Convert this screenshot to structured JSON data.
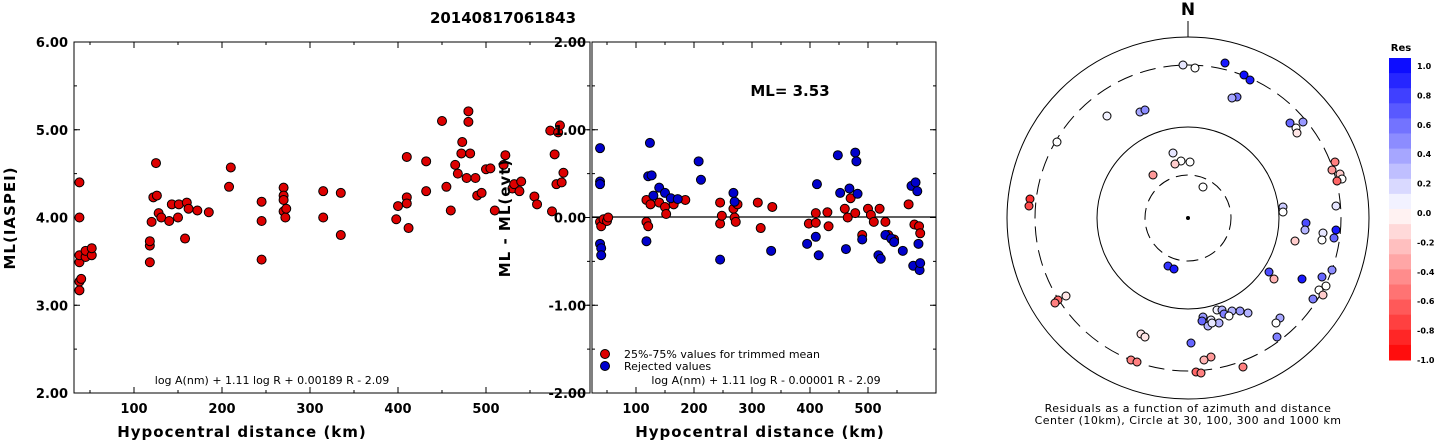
{
  "title": "20140817061843",
  "chart_data": [
    {
      "type": "scatter",
      "id": "left",
      "xlabel": "Hypocentral distance (km)",
      "ylabel": "ML(IASPEI)",
      "xlim": [
        0,
        590
      ],
      "ylim": [
        2.0,
        6.0
      ],
      "xticks": [
        "100",
        "200",
        "300",
        "400",
        "500"
      ],
      "yticks": [
        "2.00",
        "3.00",
        "4.00",
        "5.00",
        "6.00"
      ],
      "formula": "log A(nm) + 1.11 log R + 0.00189 R - 2.09",
      "series": [
        {
          "color": "#dd0000",
          "points": [
            [
              38,
              3.17
            ],
            [
              38,
              3.27
            ],
            [
              40,
              3.3
            ],
            [
              38,
              3.49
            ],
            [
              38,
              3.57
            ],
            [
              38,
              4.0
            ],
            [
              38,
              4.4
            ],
            [
              45,
              3.55
            ],
            [
              45,
              3.62
            ],
            [
              52,
              3.57
            ],
            [
              52,
              3.65
            ],
            [
              118,
              3.49
            ],
            [
              118,
              3.68
            ],
            [
              118,
              3.73
            ],
            [
              120,
              3.95
            ],
            [
              125,
              4.62
            ],
            [
              122,
              4.23
            ],
            [
              126,
              4.25
            ],
            [
              128,
              4.05
            ],
            [
              131,
              4.0
            ],
            [
              140,
              3.96
            ],
            [
              143,
              4.15
            ],
            [
              150,
              4.0
            ],
            [
              151,
              4.15
            ],
            [
              158,
              3.76
            ],
            [
              160,
              4.17
            ],
            [
              162,
              4.1
            ],
            [
              172,
              4.08
            ],
            [
              185,
              4.06
            ],
            [
              208,
              4.35
            ],
            [
              210,
              4.57
            ],
            [
              245,
              4.18
            ],
            [
              245,
              3.96
            ],
            [
              245,
              3.52
            ],
            [
              270,
              4.34
            ],
            [
              270,
              4.25
            ],
            [
              270,
              4.2
            ],
            [
              270,
              4.07
            ],
            [
              272,
              4.0
            ],
            [
              273,
              4.1
            ],
            [
              315,
              4.3
            ],
            [
              315,
              4.0
            ],
            [
              335,
              4.28
            ],
            [
              335,
              3.8
            ],
            [
              398,
              3.98
            ],
            [
              400,
              4.13
            ],
            [
              410,
              4.23
            ],
            [
              410,
              4.69
            ],
            [
              410,
              4.16
            ],
            [
              412,
              3.88
            ],
            [
              432,
              4.3
            ],
            [
              432,
              4.64
            ],
            [
              450,
              5.1
            ],
            [
              455,
              4.35
            ],
            [
              460,
              4.08
            ],
            [
              465,
              4.6
            ],
            [
              468,
              4.5
            ],
            [
              472,
              4.73
            ],
            [
              473,
              4.86
            ],
            [
              478,
              4.45
            ],
            [
              480,
              5.21
            ],
            [
              480,
              5.09
            ],
            [
              482,
              4.73
            ],
            [
              488,
              4.45
            ],
            [
              490,
              4.25
            ],
            [
              495,
              4.28
            ],
            [
              500,
              4.55
            ],
            [
              505,
              4.56
            ],
            [
              510,
              4.08
            ],
            [
              520,
              4.6
            ],
            [
              522,
              4.71
            ],
            [
              530,
              4.33
            ],
            [
              532,
              4.38
            ],
            [
              538,
              4.3
            ],
            [
              540,
              4.41
            ],
            [
              555,
              4.24
            ],
            [
              558,
              4.15
            ],
            [
              573,
              4.99
            ],
            [
              575,
              4.07
            ],
            [
              578,
              4.72
            ],
            [
              580,
              4.38
            ],
            [
              582,
              4.97
            ],
            [
              584,
              5.05
            ],
            [
              586,
              4.4
            ],
            [
              588,
              4.51
            ]
          ]
        }
      ]
    },
    {
      "type": "scatter",
      "id": "middle",
      "xlabel": "Hypocentral distance (km)",
      "ylabel": "ML - ML(evt)",
      "xlim": [
        0,
        590
      ],
      "ylim": [
        -2.0,
        2.0
      ],
      "xticks": [
        "100",
        "200",
        "300",
        "400",
        "500"
      ],
      "yticks": [
        "-2.00",
        "-1.00",
        "0.00",
        "1.00",
        "2.00"
      ],
      "annotation": "ML= 3.53",
      "formula": "log A(nm) + 1.11 log R - 0.00001 R - 2.09",
      "legend": [
        "25%-75% values for trimmed mean",
        "Rejected values"
      ],
      "series": [
        {
          "color": "#dd0000",
          "points": [
            [
              38,
              -0.05
            ],
            [
              40,
              -0.1
            ],
            [
              44,
              -0.02
            ],
            [
              50,
              -0.04
            ],
            [
              52,
              0.0
            ],
            [
              118,
              0.2
            ],
            [
              118,
              -0.05
            ],
            [
              121,
              -0.1
            ],
            [
              125,
              0.15
            ],
            [
              140,
              0.17
            ],
            [
              150,
              0.12
            ],
            [
              152,
              0.04
            ],
            [
              165,
              0.15
            ],
            [
              185,
              0.2
            ],
            [
              245,
              0.17
            ],
            [
              245,
              -0.07
            ],
            [
              248,
              0.02
            ],
            [
              268,
              0.1
            ],
            [
              270,
              0.0
            ],
            [
              272,
              -0.05
            ],
            [
              275,
              0.15
            ],
            [
              310,
              0.17
            ],
            [
              315,
              -0.12
            ],
            [
              335,
              0.12
            ],
            [
              398,
              -0.07
            ],
            [
              410,
              0.05
            ],
            [
              410,
              -0.06
            ],
            [
              430,
              0.06
            ],
            [
              432,
              -0.1
            ],
            [
              460,
              0.1
            ],
            [
              465,
              0.0
            ],
            [
              470,
              0.22
            ],
            [
              478,
              0.05
            ],
            [
              490,
              -0.2
            ],
            [
              500,
              0.1
            ],
            [
              505,
              0.03
            ],
            [
              510,
              -0.05
            ],
            [
              520,
              0.1
            ],
            [
              530,
              -0.05
            ],
            [
              535,
              -0.2
            ],
            [
              545,
              -0.25
            ],
            [
              570,
              0.15
            ],
            [
              580,
              -0.08
            ],
            [
              588,
              -0.1
            ],
            [
              590,
              -0.18
            ]
          ]
        },
        {
          "color": "#0000cc",
          "points": [
            [
              38,
              0.79
            ],
            [
              38,
              0.41
            ],
            [
              38,
              0.38
            ],
            [
              38,
              -0.3
            ],
            [
              40,
              -0.35
            ],
            [
              40,
              -0.43
            ],
            [
              118,
              -0.27
            ],
            [
              121,
              0.47
            ],
            [
              124,
              0.85
            ],
            [
              127,
              0.48
            ],
            [
              130,
              0.25
            ],
            [
              140,
              0.34
            ],
            [
              150,
              0.28
            ],
            [
              160,
              0.22
            ],
            [
              172,
              0.21
            ],
            [
              208,
              0.64
            ],
            [
              212,
              0.43
            ],
            [
              245,
              -0.48
            ],
            [
              268,
              0.28
            ],
            [
              270,
              0.18
            ],
            [
              333,
              -0.38
            ],
            [
              395,
              -0.3
            ],
            [
              410,
              -0.22
            ],
            [
              412,
              0.38
            ],
            [
              415,
              -0.43
            ],
            [
              448,
              0.71
            ],
            [
              452,
              0.28
            ],
            [
              462,
              -0.36
            ],
            [
              468,
              0.33
            ],
            [
              478,
              0.74
            ],
            [
              480,
              0.64
            ],
            [
              482,
              0.27
            ],
            [
              490,
              -0.25
            ],
            [
              518,
              -0.43
            ],
            [
              522,
              -0.47
            ],
            [
              530,
              -0.2
            ],
            [
              540,
              -0.24
            ],
            [
              545,
              -0.28
            ],
            [
              560,
              -0.38
            ],
            [
              575,
              0.36
            ],
            [
              578,
              -0.55
            ],
            [
              582,
              0.4
            ],
            [
              585,
              0.3
            ],
            [
              587,
              -0.3
            ],
            [
              589,
              -0.6
            ],
            [
              590,
              -0.52
            ]
          ]
        }
      ]
    },
    {
      "type": "scatter",
      "id": "polar",
      "north_label": "N",
      "caption_line1": "Residuals as a function of azimuth and distance",
      "caption_line2": "Center (10km), Circle at 30, 100, 300 and 1000 km",
      "colorbar_title": "Res",
      "colorbar_ticks": [
        "1.0",
        "0.8",
        "0.6",
        "0.4",
        "0.2",
        "0.0",
        "-0.2",
        "-0.4",
        "-0.6",
        "-0.8",
        "-1.0"
      ],
      "points_res": [
        [
          1183,
          65,
          0.1
        ],
        [
          1195,
          68,
          0.0
        ],
        [
          1225,
          63,
          0.9
        ],
        [
          1244,
          75,
          0.95
        ],
        [
          1250,
          80,
          0.9
        ],
        [
          1237,
          97,
          0.55
        ],
        [
          1232,
          98,
          0.35
        ],
        [
          1140,
          112,
          0.35
        ],
        [
          1145,
          110,
          0.45
        ],
        [
          1107,
          116,
          0.05
        ],
        [
          1303,
          122,
          0.4
        ],
        [
          1290,
          123,
          0.6
        ],
        [
          1296,
          128,
          0.0
        ],
        [
          1297,
          133,
          -0.1
        ],
        [
          1057,
          142,
          0.0
        ],
        [
          1173,
          153,
          0.1
        ],
        [
          1181,
          161,
          0.0
        ],
        [
          1175,
          164,
          -0.2
        ],
        [
          1190,
          162,
          0.0
        ],
        [
          1335,
          162,
          -0.5
        ],
        [
          1332,
          170,
          -0.4
        ],
        [
          1340,
          174,
          -0.2
        ],
        [
          1342,
          179,
          0.0
        ],
        [
          1337,
          181,
          -0.6
        ],
        [
          1153,
          175,
          -0.4
        ],
        [
          1203,
          187,
          0.0
        ],
        [
          1030,
          199,
          -0.8
        ],
        [
          1029,
          206,
          -0.7
        ],
        [
          1283,
          207,
          0.2
        ],
        [
          1283,
          212,
          0.0
        ],
        [
          1336,
          206,
          0.1
        ],
        [
          1306,
          223,
          0.7
        ],
        [
          1305,
          230,
          0.3
        ],
        [
          1323,
          233,
          0.1
        ],
        [
          1336,
          230,
          0.9
        ],
        [
          1334,
          238,
          0.6
        ],
        [
          1295,
          241,
          -0.2
        ],
        [
          1322,
          240,
          0.0
        ],
        [
          1168,
          266,
          0.8
        ],
        [
          1174,
          269,
          0.9
        ],
        [
          1269,
          272,
          0.7
        ],
        [
          1274,
          279,
          -0.3
        ],
        [
          1302,
          279,
          0.9
        ],
        [
          1322,
          277,
          0.6
        ],
        [
          1332,
          270,
          0.45
        ],
        [
          1326,
          286,
          0.0
        ],
        [
          1319,
          290,
          0.0
        ],
        [
          1323,
          295,
          -0.2
        ],
        [
          1313,
          299,
          0.5
        ],
        [
          1058,
          300,
          -0.6
        ],
        [
          1066,
          296,
          -0.1
        ],
        [
          1055,
          303,
          -0.5
        ],
        [
          1217,
          310,
          0.05
        ],
        [
          1222,
          310,
          0.3
        ],
        [
          1232,
          311,
          0.3
        ],
        [
          1240,
          311,
          0.4
        ],
        [
          1224,
          314,
          0.5
        ],
        [
          1229,
          316,
          0.0
        ],
        [
          1248,
          313,
          0.3
        ],
        [
          1203,
          317,
          0.4
        ],
        [
          1211,
          320,
          0.1
        ],
        [
          1202,
          321,
          0.6
        ],
        [
          1219,
          323,
          0.3
        ],
        [
          1208,
          326,
          0.3
        ],
        [
          1212,
          323,
          0.1
        ],
        [
          1280,
          318,
          0.35
        ],
        [
          1276,
          323,
          0.0
        ],
        [
          1277,
          337,
          0.5
        ],
        [
          1141,
          334,
          -0.1
        ],
        [
          1145,
          337,
          -0.1
        ],
        [
          1191,
          343,
          0.6
        ],
        [
          1211,
          357,
          -0.4
        ],
        [
          1204,
          360,
          -0.3
        ],
        [
          1131,
          360,
          -0.5
        ],
        [
          1137,
          362,
          -0.5
        ],
        [
          1196,
          372,
          -0.6
        ],
        [
          1201,
          373,
          -0.5
        ],
        [
          1243,
          367,
          -0.5
        ]
      ]
    }
  ]
}
